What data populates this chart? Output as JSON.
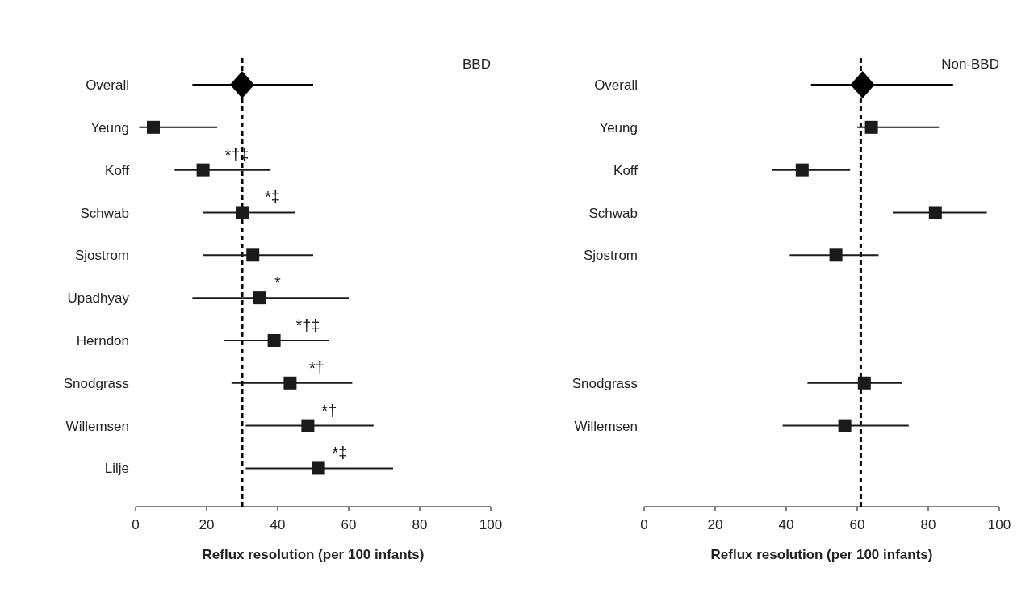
{
  "chart_data": [
    {
      "type": "scatter",
      "orientation": "horizontal",
      "xlabel": "Reflux resolution (per 100 infants)",
      "categories": [
        "Overall",
        "Yeung",
        "Koff",
        "Schwab",
        "Sjostrom",
        "Upadhyay",
        "Herndon",
        "Snodgrass",
        "Willemsen",
        "Lilje"
      ],
      "series": [
        {
          "type": "scatter",
          "marker": "diamond",
          "color": "#000000",
          "values": [
            30,
            null,
            null,
            null,
            null,
            null,
            null,
            null,
            null,
            null
          ],
          "errors": [
            [
              16,
              50
            ],
            null,
            null,
            null,
            null,
            null,
            null,
            null,
            null,
            null
          ]
        },
        {
          "type": "scatter",
          "marker": "square",
          "color": "#1a1a1a",
          "values": [
            null,
            5,
            19,
            30,
            33,
            35,
            39,
            43.5,
            48.5,
            51.5
          ],
          "errors": [
            null,
            [
              1,
              23
            ],
            [
              11,
              38
            ],
            [
              19,
              45
            ],
            [
              19,
              50
            ],
            [
              16,
              60
            ],
            [
              25,
              54.5
            ],
            [
              27,
              61
            ],
            [
              31,
              67
            ],
            [
              31,
              72.5
            ]
          ]
        }
      ],
      "xlim": [
        0,
        100
      ],
      "xticks": [
        0,
        20,
        40,
        60,
        80,
        100
      ],
      "ref_lines": [
        {
          "axis": "x",
          "value": 30,
          "color": "#000000",
          "line_style": "dashed"
        }
      ],
      "annotations": [
        "BBD",
        "*†‡",
        "*‡",
        "*",
        "*†‡",
        "*†",
        "*†",
        "*‡"
      ]
    },
    {
      "type": "scatter",
      "orientation": "horizontal",
      "xlabel": "Reflux resolution (per 100 infants)",
      "categories": [
        "Overall",
        "Yeung",
        "Koff",
        "Schwab",
        "Sjostrom",
        null,
        null,
        "Snodgrass",
        "Willemsen"
      ],
      "series": [
        {
          "type": "scatter",
          "marker": "diamond",
          "color": "#000000",
          "values": [
            61.5,
            null,
            null,
            null,
            null,
            null,
            null,
            null,
            null
          ],
          "errors": [
            [
              47,
              87
            ],
            null,
            null,
            null,
            null,
            null,
            null,
            null,
            null
          ]
        },
        {
          "type": "scatter",
          "marker": "square",
          "color": "#1a1a1a",
          "values": [
            null,
            64,
            44.5,
            82,
            54,
            null,
            null,
            62,
            56.5
          ],
          "errors": [
            null,
            [
              60,
              83
            ],
            [
              36,
              58
            ],
            [
              70,
              96.5
            ],
            [
              41,
              66
            ],
            null,
            null,
            [
              46,
              72.5
            ],
            [
              39,
              74.5
            ]
          ]
        }
      ],
      "xlim": [
        0,
        100
      ],
      "xticks": [
        0,
        20,
        40,
        60,
        80,
        100
      ],
      "ref_lines": [
        {
          "axis": "x",
          "value": 61,
          "color": "#000000",
          "line_style": "dashed"
        }
      ],
      "annotations": [
        "Non-BBD"
      ]
    }
  ]
}
